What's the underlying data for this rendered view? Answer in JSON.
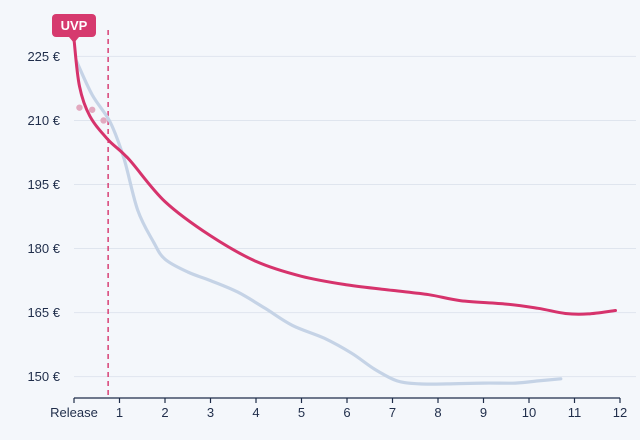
{
  "chart_data": {
    "type": "line",
    "title": "",
    "xlabel": "",
    "ylabel": "",
    "ylim": [
      145,
      234
    ],
    "xlim": [
      0,
      12
    ],
    "y_ticks": [
      150,
      165,
      180,
      195,
      210,
      225
    ],
    "y_tick_labels": [
      "150 €",
      "165 €",
      "180 €",
      "195 €",
      "210 €",
      "225 €"
    ],
    "x_ticks": [
      0,
      1,
      2,
      3,
      4,
      5,
      6,
      7,
      8,
      9,
      10,
      11,
      12
    ],
    "x_tick_labels": [
      "Release",
      "1",
      "2",
      "3",
      "4",
      "5",
      "6",
      "7",
      "8",
      "9",
      "10",
      "11",
      "12"
    ],
    "grid": "horizontal",
    "annotations": {
      "badge_label": "UVP",
      "badge_color": "#d63a6e",
      "uvp_value": 229,
      "marker_line_x": 0.75
    },
    "series": [
      {
        "color": "#d6336c",
        "points": [
          [
            0,
            229
          ],
          [
            0.12,
            218
          ],
          [
            0.35,
            211
          ],
          [
            0.75,
            205.5
          ],
          [
            1.2,
            201
          ],
          [
            2,
            191
          ],
          [
            3,
            183
          ],
          [
            4,
            177
          ],
          [
            5,
            173.5
          ],
          [
            6,
            171.5
          ],
          [
            7,
            170.2
          ],
          [
            7.8,
            169.2
          ],
          [
            8.5,
            167.8
          ],
          [
            9.5,
            167
          ],
          [
            10.2,
            166
          ],
          [
            10.8,
            164.8
          ],
          [
            11.3,
            164.7
          ],
          [
            11.9,
            165.5
          ]
        ]
      },
      {
        "color": "#c5d3e6",
        "points": [
          [
            0.05,
            224
          ],
          [
            0.4,
            216
          ],
          [
            0.8,
            209.5
          ],
          [
            1.1,
            201
          ],
          [
            1.4,
            189
          ],
          [
            1.75,
            181.5
          ],
          [
            2,
            177.5
          ],
          [
            2.5,
            174.5
          ],
          [
            3,
            172.5
          ],
          [
            3.6,
            169.8
          ],
          [
            4.2,
            166
          ],
          [
            4.8,
            162
          ],
          [
            5.5,
            159
          ],
          [
            6.1,
            155.5
          ],
          [
            6.6,
            151.8
          ],
          [
            7.1,
            149
          ],
          [
            7.6,
            148.3
          ],
          [
            8.2,
            148.3
          ],
          [
            9,
            148.5
          ],
          [
            9.7,
            148.5
          ],
          [
            10.2,
            149
          ],
          [
            10.7,
            149.5
          ]
        ]
      },
      {
        "color": "#e2a9bf",
        "style": "dotted",
        "points": [
          [
            0.12,
            213
          ],
          [
            0.4,
            212.5
          ],
          [
            0.65,
            210
          ]
        ]
      }
    ]
  }
}
